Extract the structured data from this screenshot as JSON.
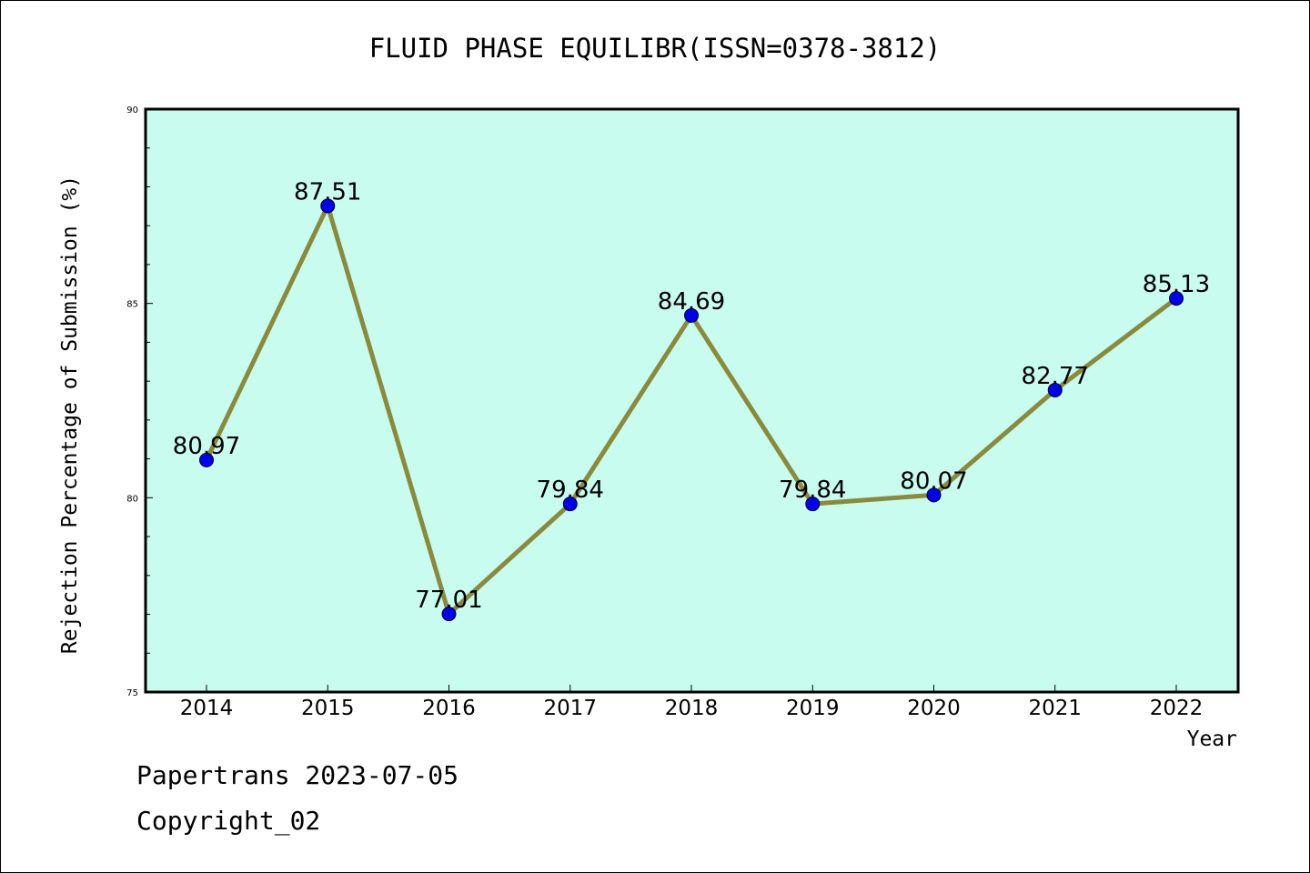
{
  "title": "FLUID PHASE EQUILIBR(ISSN=0378-3812)",
  "footer": {
    "line1": "Papertrans 2023-07-05",
    "line2": "Copyright_02"
  },
  "colors": {
    "plot_background": "#c8fcee",
    "line": "#8b8a3a",
    "marker": "#0000ee"
  },
  "chart_data": {
    "type": "line",
    "title": "FLUID PHASE EQUILIBR(ISSN=0378-3812)",
    "xlabel": "Year",
    "ylabel": "Rejection Percentage of Submission (%)",
    "categories": [
      "2014",
      "2015",
      "2016",
      "2017",
      "2018",
      "2019",
      "2020",
      "2021",
      "2022"
    ],
    "values": [
      80.97,
      87.51,
      77.01,
      79.84,
      84.69,
      79.84,
      80.07,
      82.77,
      85.13
    ],
    "data_labels": [
      "80.97",
      "87.51",
      "77.01",
      "79.84",
      "84.69",
      "79.84",
      "80.07",
      "82.77",
      "85.13"
    ],
    "ylim": [
      75,
      90
    ],
    "y_ticks": [
      "75",
      "80",
      "85",
      "90"
    ],
    "grid": false,
    "legend": "none"
  }
}
